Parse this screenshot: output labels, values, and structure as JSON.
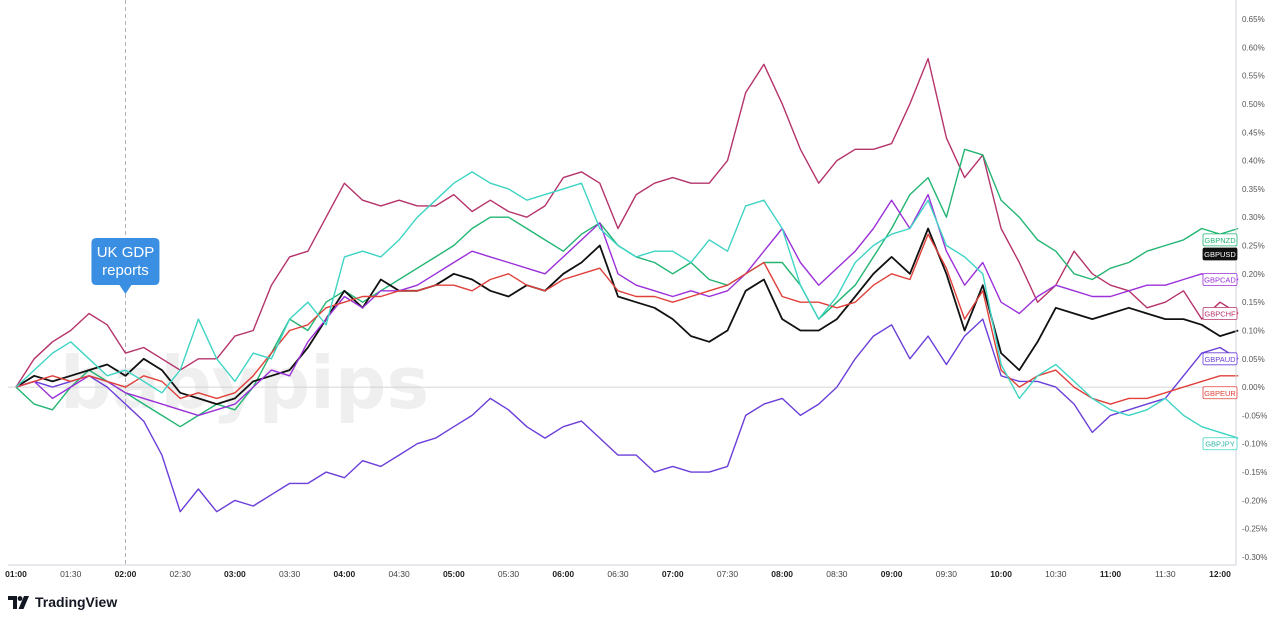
{
  "brand": {
    "name": "TradingView",
    "watermark": "babypips"
  },
  "annotation": {
    "line1": "UK GDP",
    "line2": "reports",
    "x": "02:00",
    "color": "#3a8fe3"
  },
  "chart_data": {
    "type": "line",
    "x_ticks": [
      "01:00",
      "01:30",
      "02:00",
      "02:30",
      "03:00",
      "03:30",
      "04:00",
      "04:30",
      "05:00",
      "05:30",
      "06:00",
      "06:30",
      "07:00",
      "07:30",
      "08:00",
      "08:30",
      "09:00",
      "09:30",
      "10:00",
      "10:30",
      "11:00",
      "11:30",
      "12:00"
    ],
    "x_range": [
      "01:00",
      "12:00"
    ],
    "y_ticks": [
      "0.65%",
      "0.60%",
      "0.55%",
      "0.50%",
      "0.45%",
      "0.40%",
      "0.35%",
      "0.30%",
      "0.25%",
      "0.20%",
      "0.15%",
      "0.10%",
      "0.05%",
      "0.00%",
      "-0.05%",
      "-0.10%",
      "-0.15%",
      "-0.20%",
      "-0.25%",
      "-0.30%"
    ],
    "y_range": [
      -0.3,
      0.65
    ],
    "y_unit": "%",
    "grid": false,
    "series": [
      {
        "name": "GBPCHF",
        "color": "#b5336b",
        "label_fill": "#ffffff",
        "label_text": "#b5336b",
        "label_at": 0.13,
        "x": [
          "01:00",
          "01:10",
          "01:20",
          "01:30",
          "01:40",
          "01:50",
          "02:00",
          "02:10",
          "02:20",
          "02:30",
          "02:40",
          "02:50",
          "03:00",
          "03:10",
          "03:20",
          "03:30",
          "03:40",
          "03:50",
          "04:00",
          "04:10",
          "04:20",
          "04:30",
          "04:40",
          "04:50",
          "05:00",
          "05:10",
          "05:20",
          "05:30",
          "05:40",
          "05:50",
          "06:00",
          "06:10",
          "06:20",
          "06:30",
          "06:40",
          "06:50",
          "07:00",
          "07:10",
          "07:20",
          "07:30",
          "07:40",
          "07:50",
          "08:00",
          "08:10",
          "08:20",
          "08:30",
          "08:40",
          "08:50",
          "09:00",
          "09:10",
          "09:20",
          "09:30",
          "09:40",
          "09:50",
          "10:00",
          "10:10",
          "10:20",
          "10:30",
          "10:40",
          "10:50",
          "11:00",
          "11:10",
          "11:20",
          "11:30",
          "11:40",
          "11:50",
          "12:00",
          "12:10"
        ],
        "values": [
          0,
          0.05,
          0.08,
          0.1,
          0.13,
          0.11,
          0.06,
          0.07,
          0.05,
          0.03,
          0.05,
          0.05,
          0.09,
          0.1,
          0.18,
          0.23,
          0.24,
          0.3,
          0.36,
          0.33,
          0.32,
          0.33,
          0.32,
          0.32,
          0.34,
          0.31,
          0.33,
          0.31,
          0.3,
          0.32,
          0.37,
          0.38,
          0.36,
          0.28,
          0.34,
          0.36,
          0.37,
          0.36,
          0.36,
          0.4,
          0.52,
          0.57,
          0.5,
          0.42,
          0.36,
          0.4,
          0.42,
          0.42,
          0.43,
          0.5,
          0.58,
          0.44,
          0.37,
          0.41,
          0.28,
          0.22,
          0.15,
          0.18,
          0.24,
          0.2,
          0.18,
          0.17,
          0.14,
          0.15,
          0.17,
          0.12,
          0.15,
          0.13
        ]
      },
      {
        "name": "GBPNZD",
        "color": "#22b573",
        "label_fill": "#ffffff",
        "label_text": "#22b573",
        "label_at": 0.26,
        "x": [
          "01:00",
          "01:10",
          "01:20",
          "01:30",
          "01:40",
          "01:50",
          "02:00",
          "02:10",
          "02:20",
          "02:30",
          "02:40",
          "02:50",
          "03:00",
          "03:10",
          "03:20",
          "03:30",
          "03:40",
          "03:50",
          "04:00",
          "04:10",
          "04:20",
          "04:30",
          "04:40",
          "04:50",
          "05:00",
          "05:10",
          "05:20",
          "05:30",
          "05:40",
          "05:50",
          "06:00",
          "06:10",
          "06:20",
          "06:30",
          "06:40",
          "06:50",
          "07:00",
          "07:10",
          "07:20",
          "07:30",
          "07:40",
          "07:50",
          "08:00",
          "08:10",
          "08:20",
          "08:30",
          "08:40",
          "08:50",
          "09:00",
          "09:10",
          "09:20",
          "09:30",
          "09:40",
          "09:50",
          "10:00",
          "10:10",
          "10:20",
          "10:30",
          "10:40",
          "10:50",
          "11:00",
          "11:10",
          "11:20",
          "11:30",
          "11:40",
          "11:50",
          "12:00",
          "12:10"
        ],
        "values": [
          0,
          -0.03,
          -0.04,
          0.0,
          0.03,
          0.01,
          -0.01,
          -0.03,
          -0.05,
          -0.07,
          -0.05,
          -0.03,
          -0.04,
          0.0,
          0.06,
          0.12,
          0.1,
          0.15,
          0.17,
          0.15,
          0.17,
          0.19,
          0.21,
          0.23,
          0.25,
          0.28,
          0.3,
          0.3,
          0.28,
          0.26,
          0.24,
          0.27,
          0.29,
          0.25,
          0.23,
          0.22,
          0.2,
          0.22,
          0.19,
          0.18,
          0.2,
          0.22,
          0.22,
          0.18,
          0.12,
          0.15,
          0.18,
          0.23,
          0.28,
          0.34,
          0.37,
          0.3,
          0.42,
          0.41,
          0.33,
          0.3,
          0.26,
          0.24,
          0.2,
          0.19,
          0.21,
          0.22,
          0.24,
          0.25,
          0.26,
          0.28,
          0.27,
          0.28
        ]
      },
      {
        "name": "GBPUSD",
        "color": "#111111",
        "label_fill": "#111111",
        "label_text": "#ffffff",
        "label_at": 0.235,
        "x": [
          "01:00",
          "01:10",
          "01:20",
          "01:30",
          "01:40",
          "01:50",
          "02:00",
          "02:10",
          "02:20",
          "02:30",
          "02:40",
          "02:50",
          "03:00",
          "03:10",
          "03:20",
          "03:30",
          "03:40",
          "03:50",
          "04:00",
          "04:10",
          "04:20",
          "04:30",
          "04:40",
          "04:50",
          "05:00",
          "05:10",
          "05:20",
          "05:30",
          "05:40",
          "05:50",
          "06:00",
          "06:10",
          "06:20",
          "06:30",
          "06:40",
          "06:50",
          "07:00",
          "07:10",
          "07:20",
          "07:30",
          "07:40",
          "07:50",
          "08:00",
          "08:10",
          "08:20",
          "08:30",
          "08:40",
          "08:50",
          "09:00",
          "09:10",
          "09:20",
          "09:30",
          "09:40",
          "09:50",
          "10:00",
          "10:10",
          "10:20",
          "10:30",
          "10:40",
          "10:50",
          "11:00",
          "11:10",
          "11:20",
          "11:30",
          "11:40",
          "11:50",
          "12:00",
          "12:10"
        ],
        "values": [
          0,
          0.02,
          0.01,
          0.02,
          0.03,
          0.04,
          0.02,
          0.05,
          0.03,
          -0.01,
          -0.02,
          -0.03,
          -0.02,
          0.01,
          0.02,
          0.03,
          0.07,
          0.12,
          0.17,
          0.14,
          0.19,
          0.17,
          0.17,
          0.18,
          0.2,
          0.19,
          0.17,
          0.16,
          0.18,
          0.17,
          0.2,
          0.22,
          0.25,
          0.16,
          0.15,
          0.14,
          0.12,
          0.09,
          0.08,
          0.1,
          0.17,
          0.19,
          0.12,
          0.1,
          0.1,
          0.12,
          0.16,
          0.2,
          0.23,
          0.2,
          0.28,
          0.2,
          0.1,
          0.18,
          0.06,
          0.03,
          0.08,
          0.14,
          0.13,
          0.12,
          0.13,
          0.14,
          0.13,
          0.12,
          0.12,
          0.11,
          0.09,
          0.1
        ]
      },
      {
        "name": "GBPCAD",
        "color": "#9b30d9",
        "label_fill": "#ffffff",
        "label_text": "#9b30d9",
        "label_at": 0.19,
        "x": [
          "01:00",
          "01:10",
          "01:20",
          "01:30",
          "01:40",
          "01:50",
          "02:00",
          "02:10",
          "02:20",
          "02:30",
          "02:40",
          "02:50",
          "03:00",
          "03:10",
          "03:20",
          "03:30",
          "03:40",
          "03:50",
          "04:00",
          "04:10",
          "04:20",
          "04:30",
          "04:40",
          "04:50",
          "05:00",
          "05:10",
          "05:20",
          "05:30",
          "05:40",
          "05:50",
          "06:00",
          "06:10",
          "06:20",
          "06:30",
          "06:40",
          "06:50",
          "07:00",
          "07:10",
          "07:20",
          "07:30",
          "07:40",
          "07:50",
          "08:00",
          "08:10",
          "08:20",
          "08:30",
          "08:40",
          "08:50",
          "09:00",
          "09:10",
          "09:20",
          "09:30",
          "09:40",
          "09:50",
          "10:00",
          "10:10",
          "10:20",
          "10:30",
          "10:40",
          "10:50",
          "11:00",
          "11:10",
          "11:20",
          "11:30",
          "11:40",
          "11:50",
          "12:00",
          "12:10"
        ],
        "values": [
          0,
          0.01,
          -0.02,
          0.0,
          0.02,
          0.01,
          -0.01,
          -0.02,
          -0.03,
          -0.04,
          -0.05,
          -0.04,
          -0.03,
          0.0,
          0.03,
          0.02,
          0.08,
          0.12,
          0.16,
          0.14,
          0.17,
          0.17,
          0.18,
          0.2,
          0.22,
          0.24,
          0.23,
          0.22,
          0.21,
          0.2,
          0.23,
          0.26,
          0.29,
          0.2,
          0.18,
          0.17,
          0.16,
          0.17,
          0.16,
          0.17,
          0.2,
          0.24,
          0.28,
          0.22,
          0.18,
          0.21,
          0.24,
          0.28,
          0.33,
          0.28,
          0.34,
          0.24,
          0.18,
          0.22,
          0.15,
          0.13,
          0.16,
          0.18,
          0.17,
          0.16,
          0.16,
          0.17,
          0.18,
          0.18,
          0.19,
          0.2,
          0.19,
          0.19
        ]
      },
      {
        "name": "GBPAUD",
        "color": "#6b3fd9",
        "label_fill": "#ffffff",
        "label_text": "#6b3fd9",
        "label_at": 0.05,
        "x": [
          "01:00",
          "01:10",
          "01:20",
          "01:30",
          "01:40",
          "01:50",
          "02:00",
          "02:10",
          "02:20",
          "02:30",
          "02:40",
          "02:50",
          "03:00",
          "03:10",
          "03:20",
          "03:30",
          "03:40",
          "03:50",
          "04:00",
          "04:10",
          "04:20",
          "04:30",
          "04:40",
          "04:50",
          "05:00",
          "05:10",
          "05:20",
          "05:30",
          "05:40",
          "05:50",
          "06:00",
          "06:10",
          "06:20",
          "06:30",
          "06:40",
          "06:50",
          "07:00",
          "07:10",
          "07:20",
          "07:30",
          "07:40",
          "07:50",
          "08:00",
          "08:10",
          "08:20",
          "08:30",
          "08:40",
          "08:50",
          "09:00",
          "09:10",
          "09:20",
          "09:30",
          "09:40",
          "09:50",
          "10:00",
          "10:10",
          "10:20",
          "10:30",
          "10:40",
          "10:50",
          "11:00",
          "11:10",
          "11:20",
          "11:30",
          "11:40",
          "11:50",
          "12:00",
          "12:10"
        ],
        "values": [
          0,
          0.01,
          0.0,
          0.01,
          0.02,
          0.0,
          -0.03,
          -0.06,
          -0.12,
          -0.22,
          -0.18,
          -0.22,
          -0.2,
          -0.21,
          -0.19,
          -0.17,
          -0.17,
          -0.15,
          -0.16,
          -0.13,
          -0.14,
          -0.12,
          -0.1,
          -0.09,
          -0.07,
          -0.05,
          -0.02,
          -0.04,
          -0.07,
          -0.09,
          -0.07,
          -0.06,
          -0.09,
          -0.12,
          -0.12,
          -0.15,
          -0.14,
          -0.15,
          -0.15,
          -0.14,
          -0.05,
          -0.03,
          -0.02,
          -0.05,
          -0.03,
          0.0,
          0.05,
          0.09,
          0.11,
          0.05,
          0.09,
          0.04,
          0.09,
          0.12,
          0.02,
          0.01,
          0.01,
          0.0,
          -0.03,
          -0.08,
          -0.05,
          -0.04,
          -0.03,
          -0.02,
          0.02,
          0.06,
          0.07,
          0.05
        ]
      },
      {
        "name": "GBPEUR",
        "color": "#e0403a",
        "label_fill": "#ffffff",
        "label_text": "#e0403a",
        "label_at": -0.01,
        "x": [
          "01:00",
          "01:10",
          "01:20",
          "01:30",
          "01:40",
          "01:50",
          "02:00",
          "02:10",
          "02:20",
          "02:30",
          "02:40",
          "02:50",
          "03:00",
          "03:10",
          "03:20",
          "03:30",
          "03:40",
          "03:50",
          "04:00",
          "04:10",
          "04:20",
          "04:30",
          "04:40",
          "04:50",
          "05:00",
          "05:10",
          "05:20",
          "05:30",
          "05:40",
          "05:50",
          "06:00",
          "06:10",
          "06:20",
          "06:30",
          "06:40",
          "06:50",
          "07:00",
          "07:10",
          "07:20",
          "07:30",
          "07:40",
          "07:50",
          "08:00",
          "08:10",
          "08:20",
          "08:30",
          "08:40",
          "08:50",
          "09:00",
          "09:10",
          "09:20",
          "09:30",
          "09:40",
          "09:50",
          "10:00",
          "10:10",
          "10:20",
          "10:30",
          "10:40",
          "10:50",
          "11:00",
          "11:10",
          "11:20",
          "11:30",
          "11:40",
          "11:50",
          "12:00",
          "12:10"
        ],
        "values": [
          0,
          0.01,
          0.02,
          0.01,
          0.02,
          0.01,
          0.0,
          0.02,
          0.01,
          -0.02,
          -0.01,
          -0.02,
          -0.01,
          0.02,
          0.06,
          0.1,
          0.11,
          0.14,
          0.15,
          0.16,
          0.16,
          0.17,
          0.17,
          0.18,
          0.18,
          0.17,
          0.19,
          0.2,
          0.18,
          0.17,
          0.19,
          0.2,
          0.21,
          0.17,
          0.16,
          0.16,
          0.15,
          0.16,
          0.17,
          0.18,
          0.2,
          0.22,
          0.16,
          0.15,
          0.15,
          0.14,
          0.15,
          0.18,
          0.2,
          0.19,
          0.27,
          0.21,
          0.12,
          0.17,
          0.03,
          0.0,
          0.02,
          0.03,
          0.0,
          -0.02,
          -0.03,
          -0.02,
          -0.02,
          -0.01,
          0.0,
          0.01,
          0.02,
          0.02
        ]
      },
      {
        "name": "GBPJPY",
        "color": "#3fd4c4",
        "label_fill": "#ffffff",
        "label_text": "#2cb3a5",
        "label_at": -0.1,
        "x": [
          "01:00",
          "01:10",
          "01:20",
          "01:30",
          "01:40",
          "01:50",
          "02:00",
          "02:10",
          "02:20",
          "02:30",
          "02:40",
          "02:50",
          "03:00",
          "03:10",
          "03:20",
          "03:30",
          "03:40",
          "03:50",
          "04:00",
          "04:10",
          "04:20",
          "04:30",
          "04:40",
          "04:50",
          "05:00",
          "05:10",
          "05:20",
          "05:30",
          "05:40",
          "05:50",
          "06:00",
          "06:10",
          "06:20",
          "06:30",
          "06:40",
          "06:50",
          "07:00",
          "07:10",
          "07:20",
          "07:30",
          "07:40",
          "07:50",
          "08:00",
          "08:10",
          "08:20",
          "08:30",
          "08:40",
          "08:50",
          "09:00",
          "09:10",
          "09:20",
          "09:30",
          "09:40",
          "09:50",
          "10:00",
          "10:10",
          "10:20",
          "10:30",
          "10:40",
          "10:50",
          "11:00",
          "11:10",
          "11:20",
          "11:30",
          "11:40",
          "11:50",
          "12:00",
          "12:10"
        ],
        "values": [
          0,
          0.03,
          0.06,
          0.08,
          0.05,
          0.02,
          0.03,
          0.01,
          -0.01,
          0.03,
          0.12,
          0.05,
          0.01,
          0.06,
          0.05,
          0.12,
          0.15,
          0.11,
          0.23,
          0.24,
          0.23,
          0.26,
          0.3,
          0.33,
          0.36,
          0.38,
          0.36,
          0.35,
          0.33,
          0.34,
          0.35,
          0.36,
          0.28,
          0.25,
          0.23,
          0.24,
          0.24,
          0.22,
          0.26,
          0.24,
          0.32,
          0.33,
          0.28,
          0.18,
          0.12,
          0.16,
          0.22,
          0.25,
          0.27,
          0.28,
          0.33,
          0.25,
          0.23,
          0.2,
          0.04,
          -0.02,
          0.02,
          0.04,
          0.01,
          -0.02,
          -0.04,
          -0.05,
          -0.04,
          -0.02,
          -0.05,
          -0.07,
          -0.08,
          -0.09
        ]
      }
    ]
  }
}
